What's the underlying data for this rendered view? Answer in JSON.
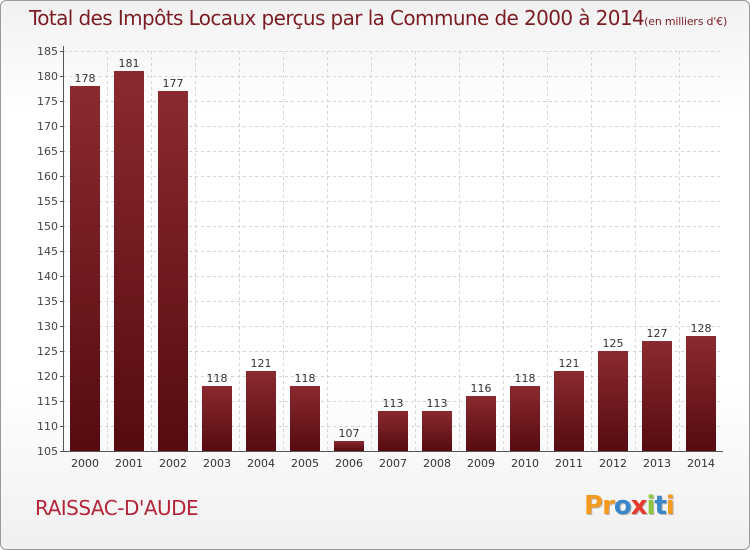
{
  "chart_data": {
    "type": "bar",
    "title": "Total des Impôts Locaux perçus par la Commune de 2000 à 2014",
    "unit_label": "(en milliers d'€)",
    "categories": [
      "2000",
      "2001",
      "2002",
      "2003",
      "2004",
      "2005",
      "2006",
      "2007",
      "2008",
      "2009",
      "2010",
      "2011",
      "2012",
      "2013",
      "2014"
    ],
    "values": [
      178,
      181,
      177,
      118,
      121,
      118,
      107,
      113,
      113,
      116,
      118,
      121,
      125,
      127,
      128
    ],
    "ylim": [
      105,
      185
    ],
    "yticks": [
      105,
      110,
      115,
      120,
      125,
      130,
      135,
      140,
      145,
      150,
      155,
      160,
      165,
      170,
      175,
      180,
      185
    ],
    "grid": true,
    "xlabel": "",
    "ylabel": ""
  },
  "commune_name": "RAISSAC-D'AUDE",
  "logo": {
    "letters": [
      "P",
      "r",
      "o",
      "x",
      "i",
      "t",
      "i"
    ],
    "colors": [
      "#f39a1f",
      "#f39a1f",
      "#3a86c8",
      "#e63a2e",
      "#8cc63f",
      "#3a86c8",
      "#f39a1f"
    ]
  },
  "colors": {
    "bar_top": "#8a2a30",
    "bar_bottom": "#560b10",
    "title": "#7a1e24",
    "commune": "#b5253a"
  }
}
